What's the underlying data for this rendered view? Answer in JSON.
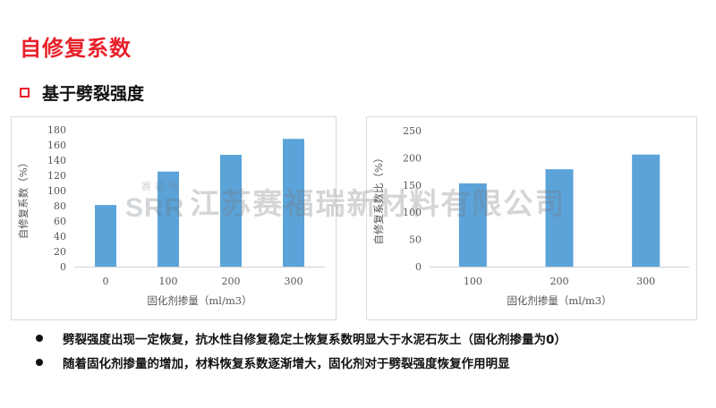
{
  "page_title": "自修复系数",
  "section_heading": "基于劈裂强度",
  "colors": {
    "title_red": "#e8202a",
    "bar_blue": "#5ba3d9",
    "axis_text": "#555555"
  },
  "watermark": {
    "logo_small": "赛福瑞",
    "logo_big": "SRR",
    "company": "江苏赛福瑞新材料有限公司"
  },
  "chart_data": [
    {
      "type": "bar",
      "categories": [
        "0",
        "100",
        "200",
        "300"
      ],
      "values": [
        81,
        125,
        147,
        168
      ],
      "xlabel": "固化剂掺量（ml/m3）",
      "ylabel": "自修复系数（%）",
      "ylim": [
        0,
        180
      ],
      "yticks": [
        "0",
        "20",
        "40",
        "60",
        "80",
        "100",
        "120",
        "140",
        "160",
        "180"
      ],
      "grid": false
    },
    {
      "type": "bar",
      "categories": [
        "100",
        "200",
        "300"
      ],
      "values": [
        153,
        179,
        206
      ],
      "xlabel": "固化剂掺量（ml/m3）",
      "ylabel": "自修复系数比（%）",
      "ylim": [
        0,
        250
      ],
      "yticks": [
        "0",
        "50",
        "100",
        "150",
        "200",
        "250"
      ],
      "grid": false
    }
  ],
  "bullets": [
    "劈裂强度出现一定恢复，抗水性自修复稳定土恢复系数明显大于水泥石灰土（固化剂掺量为0）",
    "随着固化剂掺量的增加，材料恢复系数逐渐增大，固化剂对于劈裂强度恢复作用明显"
  ]
}
